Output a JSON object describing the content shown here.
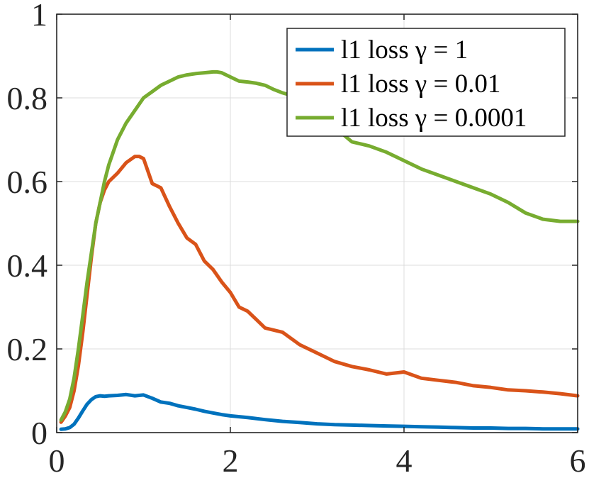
{
  "chart_data": {
    "type": "line",
    "title": "",
    "xlabel": "",
    "ylabel": "",
    "xlim": [
      0,
      6
    ],
    "ylim": [
      0,
      1
    ],
    "xticks": [
      0,
      2,
      4,
      6
    ],
    "yticks": [
      0,
      0.2,
      0.4,
      0.6,
      0.8,
      1
    ],
    "xtick_labels": [
      "0",
      "2",
      "4",
      "6"
    ],
    "ytick_labels": [
      "0",
      "0.2",
      "0.4",
      "0.6",
      "0.8",
      "1"
    ],
    "grid": true,
    "legend_position": "top-right",
    "series": [
      {
        "name": "l1 loss γ = 1",
        "color": "#0072BD",
        "x": [
          0.05,
          0.1,
          0.15,
          0.2,
          0.25,
          0.3,
          0.35,
          0.4,
          0.45,
          0.5,
          0.55,
          0.6,
          0.7,
          0.8,
          0.9,
          1.0,
          1.1,
          1.2,
          1.3,
          1.4,
          1.5,
          1.6,
          1.7,
          1.8,
          1.9,
          2.0,
          2.2,
          2.4,
          2.6,
          2.8,
          3.0,
          3.2,
          3.4,
          3.6,
          3.8,
          4.0,
          4.2,
          4.4,
          4.6,
          4.8,
          5.0,
          5.2,
          5.4,
          5.6,
          5.8,
          6.0
        ],
        "values": [
          0.008,
          0.009,
          0.012,
          0.02,
          0.035,
          0.052,
          0.068,
          0.079,
          0.086,
          0.088,
          0.087,
          0.088,
          0.089,
          0.091,
          0.088,
          0.09,
          0.082,
          0.073,
          0.07,
          0.064,
          0.06,
          0.056,
          0.051,
          0.047,
          0.043,
          0.04,
          0.036,
          0.031,
          0.027,
          0.024,
          0.021,
          0.019,
          0.018,
          0.017,
          0.016,
          0.015,
          0.014,
          0.013,
          0.012,
          0.011,
          0.011,
          0.01,
          0.01,
          0.009,
          0.009,
          0.009
        ]
      },
      {
        "name": "l1 loss γ = 0.01",
        "color": "#D95319",
        "x": [
          0.05,
          0.1,
          0.15,
          0.2,
          0.25,
          0.3,
          0.35,
          0.4,
          0.45,
          0.5,
          0.55,
          0.6,
          0.7,
          0.8,
          0.9,
          0.95,
          1.0,
          1.1,
          1.2,
          1.3,
          1.4,
          1.5,
          1.6,
          1.7,
          1.8,
          1.9,
          2.0,
          2.1,
          2.2,
          2.3,
          2.4,
          2.6,
          2.8,
          3.0,
          3.2,
          3.4,
          3.6,
          3.8,
          4.0,
          4.2,
          4.4,
          4.6,
          4.8,
          5.0,
          5.2,
          5.4,
          5.6,
          5.8,
          6.0
        ],
        "values": [
          0.025,
          0.04,
          0.06,
          0.1,
          0.16,
          0.24,
          0.33,
          0.42,
          0.5,
          0.55,
          0.58,
          0.6,
          0.62,
          0.645,
          0.66,
          0.66,
          0.655,
          0.595,
          0.585,
          0.54,
          0.5,
          0.465,
          0.45,
          0.41,
          0.39,
          0.36,
          0.335,
          0.3,
          0.29,
          0.27,
          0.25,
          0.24,
          0.21,
          0.19,
          0.17,
          0.158,
          0.15,
          0.14,
          0.145,
          0.13,
          0.125,
          0.12,
          0.112,
          0.108,
          0.102,
          0.1,
          0.097,
          0.093,
          0.088
        ]
      },
      {
        "name": "l1 loss γ = 0.0001",
        "color": "#77AC30",
        "x": [
          0.05,
          0.1,
          0.15,
          0.2,
          0.25,
          0.3,
          0.35,
          0.4,
          0.45,
          0.5,
          0.55,
          0.6,
          0.7,
          0.8,
          0.9,
          1.0,
          1.1,
          1.2,
          1.3,
          1.4,
          1.5,
          1.6,
          1.7,
          1.8,
          1.85,
          1.9,
          2.0,
          2.1,
          2.2,
          2.3,
          2.4,
          2.5,
          2.6,
          2.8,
          3.0,
          3.2,
          3.4,
          3.6,
          3.8,
          4.0,
          4.2,
          4.4,
          4.6,
          4.8,
          5.0,
          5.2,
          5.4,
          5.6,
          5.8,
          5.9,
          6.0
        ],
        "values": [
          0.03,
          0.05,
          0.08,
          0.13,
          0.2,
          0.28,
          0.36,
          0.43,
          0.5,
          0.55,
          0.6,
          0.64,
          0.7,
          0.74,
          0.77,
          0.8,
          0.815,
          0.83,
          0.84,
          0.85,
          0.855,
          0.858,
          0.86,
          0.862,
          0.862,
          0.86,
          0.85,
          0.84,
          0.838,
          0.835,
          0.83,
          0.82,
          0.812,
          0.8,
          0.77,
          0.73,
          0.695,
          0.685,
          0.67,
          0.65,
          0.63,
          0.615,
          0.6,
          0.585,
          0.57,
          0.55,
          0.525,
          0.51,
          0.505,
          0.505,
          0.505
        ]
      }
    ]
  }
}
